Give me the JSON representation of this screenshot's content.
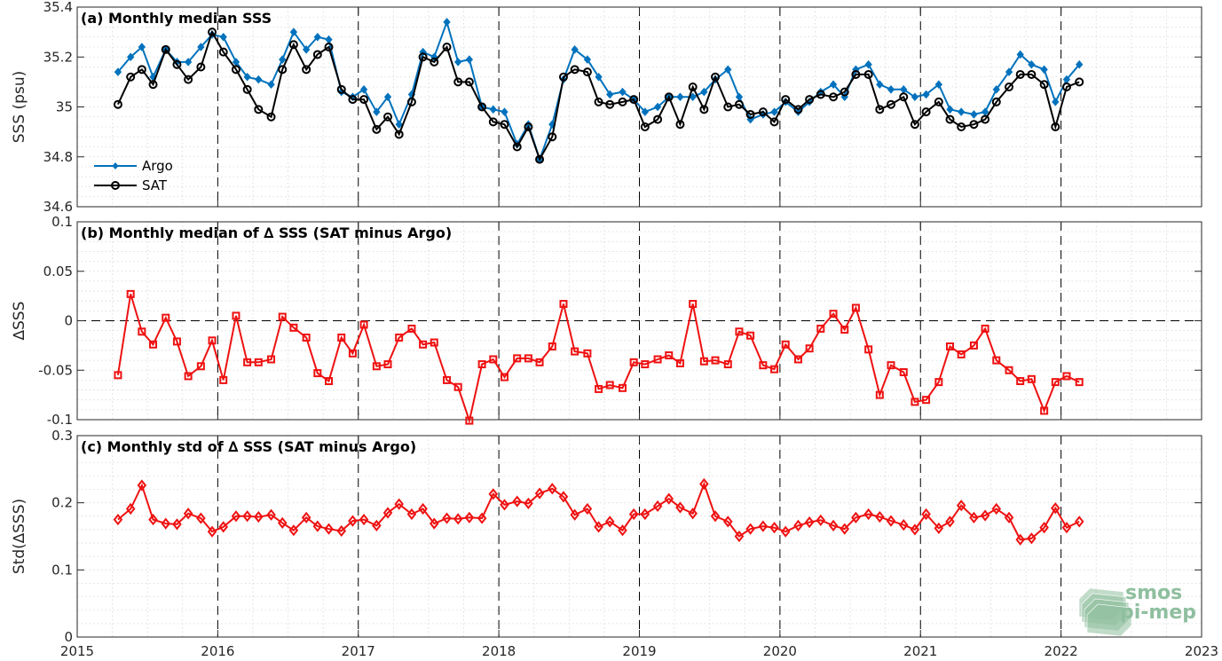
{
  "chart_data": [
    {
      "type": "line",
      "title": "(a) Monthly median SSS",
      "xlabel": "",
      "ylabel": "SSS (psu)",
      "xlim": [
        2015,
        2023
      ],
      "ylim": [
        34.6,
        35.4
      ],
      "yticks": [
        34.6,
        34.8,
        35,
        35.2,
        35.4
      ],
      "ytick_labels": [
        "34.6",
        "34.8",
        "35",
        "35.2",
        "35.4"
      ],
      "grid": "minor dotted",
      "legend": "bottom-left",
      "x": [
        2015.29,
        2015.38,
        2015.46,
        2015.54,
        2015.63,
        2015.71,
        2015.79,
        2015.88,
        2015.96,
        2016.04,
        2016.13,
        2016.21,
        2016.29,
        2016.38,
        2016.46,
        2016.54,
        2016.63,
        2016.71,
        2016.79,
        2016.88,
        2016.96,
        2017.04,
        2017.13,
        2017.21,
        2017.29,
        2017.38,
        2017.46,
        2017.54,
        2017.63,
        2017.71,
        2017.79,
        2017.88,
        2017.96,
        2018.04,
        2018.13,
        2018.21,
        2018.29,
        2018.38,
        2018.46,
        2018.54,
        2018.63,
        2018.71,
        2018.79,
        2018.88,
        2018.96,
        2019.04,
        2019.13,
        2019.21,
        2019.29,
        2019.38,
        2019.46,
        2019.54,
        2019.63,
        2019.71,
        2019.79,
        2019.88,
        2019.96,
        2020.04,
        2020.13,
        2020.21,
        2020.29,
        2020.38,
        2020.46,
        2020.54,
        2020.63,
        2020.71,
        2020.79,
        2020.88,
        2020.96,
        2021.04,
        2021.13,
        2021.21,
        2021.29,
        2021.38,
        2021.46,
        2021.54,
        2021.63,
        2021.71,
        2021.79,
        2021.88,
        2021.96,
        2022.04,
        2022.13
      ],
      "series": [
        {
          "name": "Argo",
          "color": "#0072bd",
          "marker": "diamond",
          "values": [
            35.14,
            35.2,
            35.24,
            35.12,
            35.23,
            35.18,
            35.18,
            35.24,
            35.29,
            35.28,
            35.18,
            35.12,
            35.11,
            35.09,
            35.19,
            35.3,
            35.23,
            35.28,
            35.27,
            35.06,
            35.04,
            35.07,
            34.98,
            35.04,
            34.93,
            35.05,
            35.22,
            35.2,
            35.34,
            35.18,
            35.19,
            35.0,
            34.99,
            34.98,
            34.85,
            34.93,
            34.79,
            34.93,
            35.11,
            35.23,
            35.19,
            35.12,
            35.05,
            35.06,
            35.03,
            34.98,
            35.0,
            35.04,
            35.04,
            35.04,
            35.06,
            35.11,
            35.15,
            35.04,
            34.95,
            34.97,
            34.98,
            35.02,
            34.98,
            35.02,
            35.06,
            35.09,
            35.04,
            35.15,
            35.17,
            35.09,
            35.07,
            35.07,
            35.04,
            35.05,
            35.09,
            34.99,
            34.98,
            34.97,
            34.98,
            35.07,
            35.14,
            35.21,
            35.17,
            35.15,
            35.02,
            35.11,
            35.17
          ]
        },
        {
          "name": "SAT",
          "color": "#000000",
          "marker": "circle",
          "values": [
            35.01,
            35.12,
            35.15,
            35.09,
            35.23,
            35.17,
            35.11,
            35.16,
            35.3,
            35.22,
            35.15,
            35.07,
            34.99,
            34.96,
            35.15,
            35.25,
            35.15,
            35.21,
            35.24,
            35.07,
            35.03,
            35.03,
            34.91,
            34.96,
            34.89,
            35.02,
            35.2,
            35.18,
            35.24,
            35.1,
            35.1,
            35.0,
            34.94,
            34.93,
            34.84,
            34.92,
            34.79,
            34.88,
            35.12,
            35.15,
            35.14,
            35.02,
            35.01,
            35.02,
            35.03,
            34.92,
            34.95,
            35.04,
            34.93,
            35.08,
            34.99,
            35.12,
            35.0,
            35.01,
            34.97,
            34.98,
            34.94,
            35.03,
            34.99,
            35.03,
            35.05,
            35.04,
            35.06,
            35.13,
            35.13,
            34.99,
            35.01,
            35.04,
            34.93,
            34.98,
            35.02,
            34.95,
            34.92,
            34.93,
            34.95,
            35.02,
            35.08,
            35.13,
            35.13,
            35.09,
            34.92,
            35.08,
            35.1
          ]
        }
      ]
    },
    {
      "type": "line",
      "title": "(b) Monthly median of ∆ SSS (SAT minus Argo)",
      "xlabel": "",
      "ylabel": "∆SSS",
      "xlim": [
        2015,
        2023
      ],
      "ylim": [
        -0.1,
        0.1
      ],
      "yticks": [
        -0.1,
        -0.05,
        0,
        0.05,
        0.1
      ],
      "ytick_labels": [
        "-0.1",
        "-0.05",
        "0",
        "0.05",
        "0.1"
      ],
      "zero_line": true,
      "grid": "minor dotted",
      "x": [
        2015.29,
        2015.38,
        2015.46,
        2015.54,
        2015.63,
        2015.71,
        2015.79,
        2015.88,
        2015.96,
        2016.04,
        2016.13,
        2016.21,
        2016.29,
        2016.38,
        2016.46,
        2016.54,
        2016.63,
        2016.71,
        2016.79,
        2016.88,
        2016.96,
        2017.04,
        2017.13,
        2017.21,
        2017.29,
        2017.38,
        2017.46,
        2017.54,
        2017.63,
        2017.71,
        2017.79,
        2017.88,
        2017.96,
        2018.04,
        2018.13,
        2018.21,
        2018.29,
        2018.38,
        2018.46,
        2018.54,
        2018.63,
        2018.71,
        2018.79,
        2018.88,
        2018.96,
        2019.04,
        2019.13,
        2019.21,
        2019.29,
        2019.38,
        2019.46,
        2019.54,
        2019.63,
        2019.71,
        2019.79,
        2019.88,
        2019.96,
        2020.04,
        2020.13,
        2020.21,
        2020.29,
        2020.38,
        2020.46,
        2020.54,
        2020.63,
        2020.71,
        2020.79,
        2020.88,
        2020.96,
        2021.04,
        2021.13,
        2021.21,
        2021.29,
        2021.38,
        2021.46,
        2021.54,
        2021.63,
        2021.71,
        2021.79,
        2021.88,
        2021.96,
        2022.04,
        2022.13
      ],
      "series": [
        {
          "name": "",
          "color": "#ee1111",
          "marker": "square",
          "values": [
            -0.055,
            0.027,
            -0.011,
            -0.024,
            0.003,
            -0.021,
            -0.056,
            -0.046,
            -0.02,
            -0.06,
            0.005,
            -0.042,
            -0.042,
            -0.039,
            0.004,
            -0.007,
            -0.017,
            -0.053,
            -0.061,
            -0.017,
            -0.033,
            -0.004,
            -0.046,
            -0.044,
            -0.017,
            -0.008,
            -0.024,
            -0.022,
            -0.06,
            -0.067,
            -0.101,
            -0.044,
            -0.039,
            -0.057,
            -0.038,
            -0.038,
            -0.042,
            -0.026,
            0.017,
            -0.031,
            -0.033,
            -0.069,
            -0.065,
            -0.068,
            -0.042,
            -0.044,
            -0.039,
            -0.035,
            -0.043,
            0.017,
            -0.041,
            -0.04,
            -0.044,
            -0.011,
            -0.015,
            -0.045,
            -0.049,
            -0.024,
            -0.039,
            -0.028,
            -0.008,
            0.007,
            -0.009,
            0.013,
            -0.029,
            -0.075,
            -0.045,
            -0.052,
            -0.082,
            -0.08,
            -0.062,
            -0.026,
            -0.034,
            -0.025,
            -0.008,
            -0.04,
            -0.05,
            -0.061,
            -0.059,
            -0.091,
            -0.062,
            -0.056,
            -0.062
          ]
        }
      ]
    },
    {
      "type": "line",
      "title": "(c) Monthly std of ∆ SSS (SAT minus Argo)",
      "xlabel": "",
      "ylabel": "Std(∆SSS)",
      "xlim": [
        2015,
        2023
      ],
      "ylim": [
        0,
        0.3
      ],
      "yticks": [
        0,
        0.1,
        0.2,
        0.3
      ],
      "ytick_labels": [
        "0",
        "0.1",
        "0.2",
        "0.3"
      ],
      "xticks": [
        2015,
        2016,
        2017,
        2018,
        2019,
        2020,
        2021,
        2022,
        2023
      ],
      "xtick_labels": [
        "2015",
        "2016",
        "2017",
        "2018",
        "2019",
        "2020",
        "2021",
        "2022",
        "2023"
      ],
      "grid": "minor dotted",
      "x": [
        2015.29,
        2015.38,
        2015.46,
        2015.54,
        2015.63,
        2015.71,
        2015.79,
        2015.88,
        2015.96,
        2016.04,
        2016.13,
        2016.21,
        2016.29,
        2016.38,
        2016.46,
        2016.54,
        2016.63,
        2016.71,
        2016.79,
        2016.88,
        2016.96,
        2017.04,
        2017.13,
        2017.21,
        2017.29,
        2017.38,
        2017.46,
        2017.54,
        2017.63,
        2017.71,
        2017.79,
        2017.88,
        2017.96,
        2018.04,
        2018.13,
        2018.21,
        2018.29,
        2018.38,
        2018.46,
        2018.54,
        2018.63,
        2018.71,
        2018.79,
        2018.88,
        2018.96,
        2019.04,
        2019.13,
        2019.21,
        2019.29,
        2019.38,
        2019.46,
        2019.54,
        2019.63,
        2019.71,
        2019.79,
        2019.88,
        2019.96,
        2020.04,
        2020.13,
        2020.21,
        2020.29,
        2020.38,
        2020.46,
        2020.54,
        2020.63,
        2020.71,
        2020.79,
        2020.88,
        2020.96,
        2021.04,
        2021.13,
        2021.21,
        2021.29,
        2021.38,
        2021.46,
        2021.54,
        2021.63,
        2021.71,
        2021.79,
        2021.88,
        2021.96,
        2022.04,
        2022.13
      ],
      "series": [
        {
          "name": "",
          "color": "#ee1111",
          "marker": "diamond",
          "values": [
            0.175,
            0.191,
            0.226,
            0.175,
            0.169,
            0.168,
            0.184,
            0.177,
            0.157,
            0.164,
            0.18,
            0.18,
            0.179,
            0.182,
            0.17,
            0.159,
            0.178,
            0.165,
            0.161,
            0.158,
            0.173,
            0.175,
            0.166,
            0.185,
            0.198,
            0.183,
            0.191,
            0.169,
            0.177,
            0.176,
            0.178,
            0.177,
            0.213,
            0.197,
            0.202,
            0.199,
            0.214,
            0.221,
            0.209,
            0.182,
            0.191,
            0.164,
            0.172,
            0.159,
            0.183,
            0.183,
            0.195,
            0.206,
            0.193,
            0.184,
            0.228,
            0.18,
            0.172,
            0.15,
            0.161,
            0.165,
            0.163,
            0.157,
            0.166,
            0.171,
            0.174,
            0.166,
            0.161,
            0.178,
            0.183,
            0.179,
            0.173,
            0.167,
            0.16,
            0.183,
            0.162,
            0.172,
            0.196,
            0.178,
            0.181,
            0.191,
            0.178,
            0.145,
            0.147,
            0.163,
            0.192,
            0.163,
            0.172
          ]
        }
      ]
    }
  ],
  "logo": {
    "line1": "smos",
    "line2": "pi-mep",
    "color": "#8fbf9f"
  }
}
